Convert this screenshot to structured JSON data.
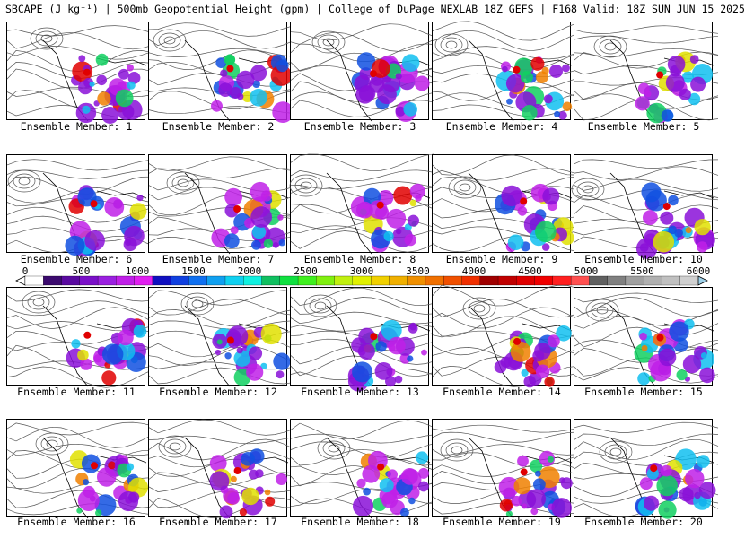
{
  "title": "SBCAPE (J kg⁻¹) | 500mb Geopotential Height (gpm) | College of DuPage NEXLAB 18Z GEFS | F168 Valid: 18Z SUN JUN 15 2025",
  "member_label_prefix": "Ensemble Member: ",
  "members": [
    "1",
    "2",
    "3",
    "4",
    "5",
    "6",
    "7",
    "8",
    "9",
    "10",
    "11",
    "12",
    "13",
    "14",
    "15",
    "16",
    "17",
    "18",
    "19",
    "20"
  ],
  "colorbar": {
    "labels": [
      "0",
      "500",
      "1000",
      "1500",
      "2000",
      "2500",
      "3000",
      "3500",
      "4000",
      "4500",
      "5000",
      "5500",
      "6000"
    ],
    "colors": [
      "#ffffff",
      "#3b0a6e",
      "#5a0aa0",
      "#7a10c8",
      "#9a20e0",
      "#c020e8",
      "#e020f0",
      "#1010c0",
      "#1040e0",
      "#1070f0",
      "#10a0f0",
      "#10d0f0",
      "#10f0e0",
      "#10c060",
      "#10e040",
      "#40f020",
      "#80f010",
      "#c0f010",
      "#e0f000",
      "#f0d000",
      "#f0b000",
      "#f09000",
      "#f07000",
      "#f05000",
      "#f03000",
      "#a00000",
      "#c00000",
      "#e00000",
      "#f00000",
      "#ff2020",
      "#ff5050",
      "#606060",
      "#808080",
      "#a0a0a0",
      "#b0b0b0",
      "#c0c0c0",
      "#d0d0d0"
    ]
  }
}
